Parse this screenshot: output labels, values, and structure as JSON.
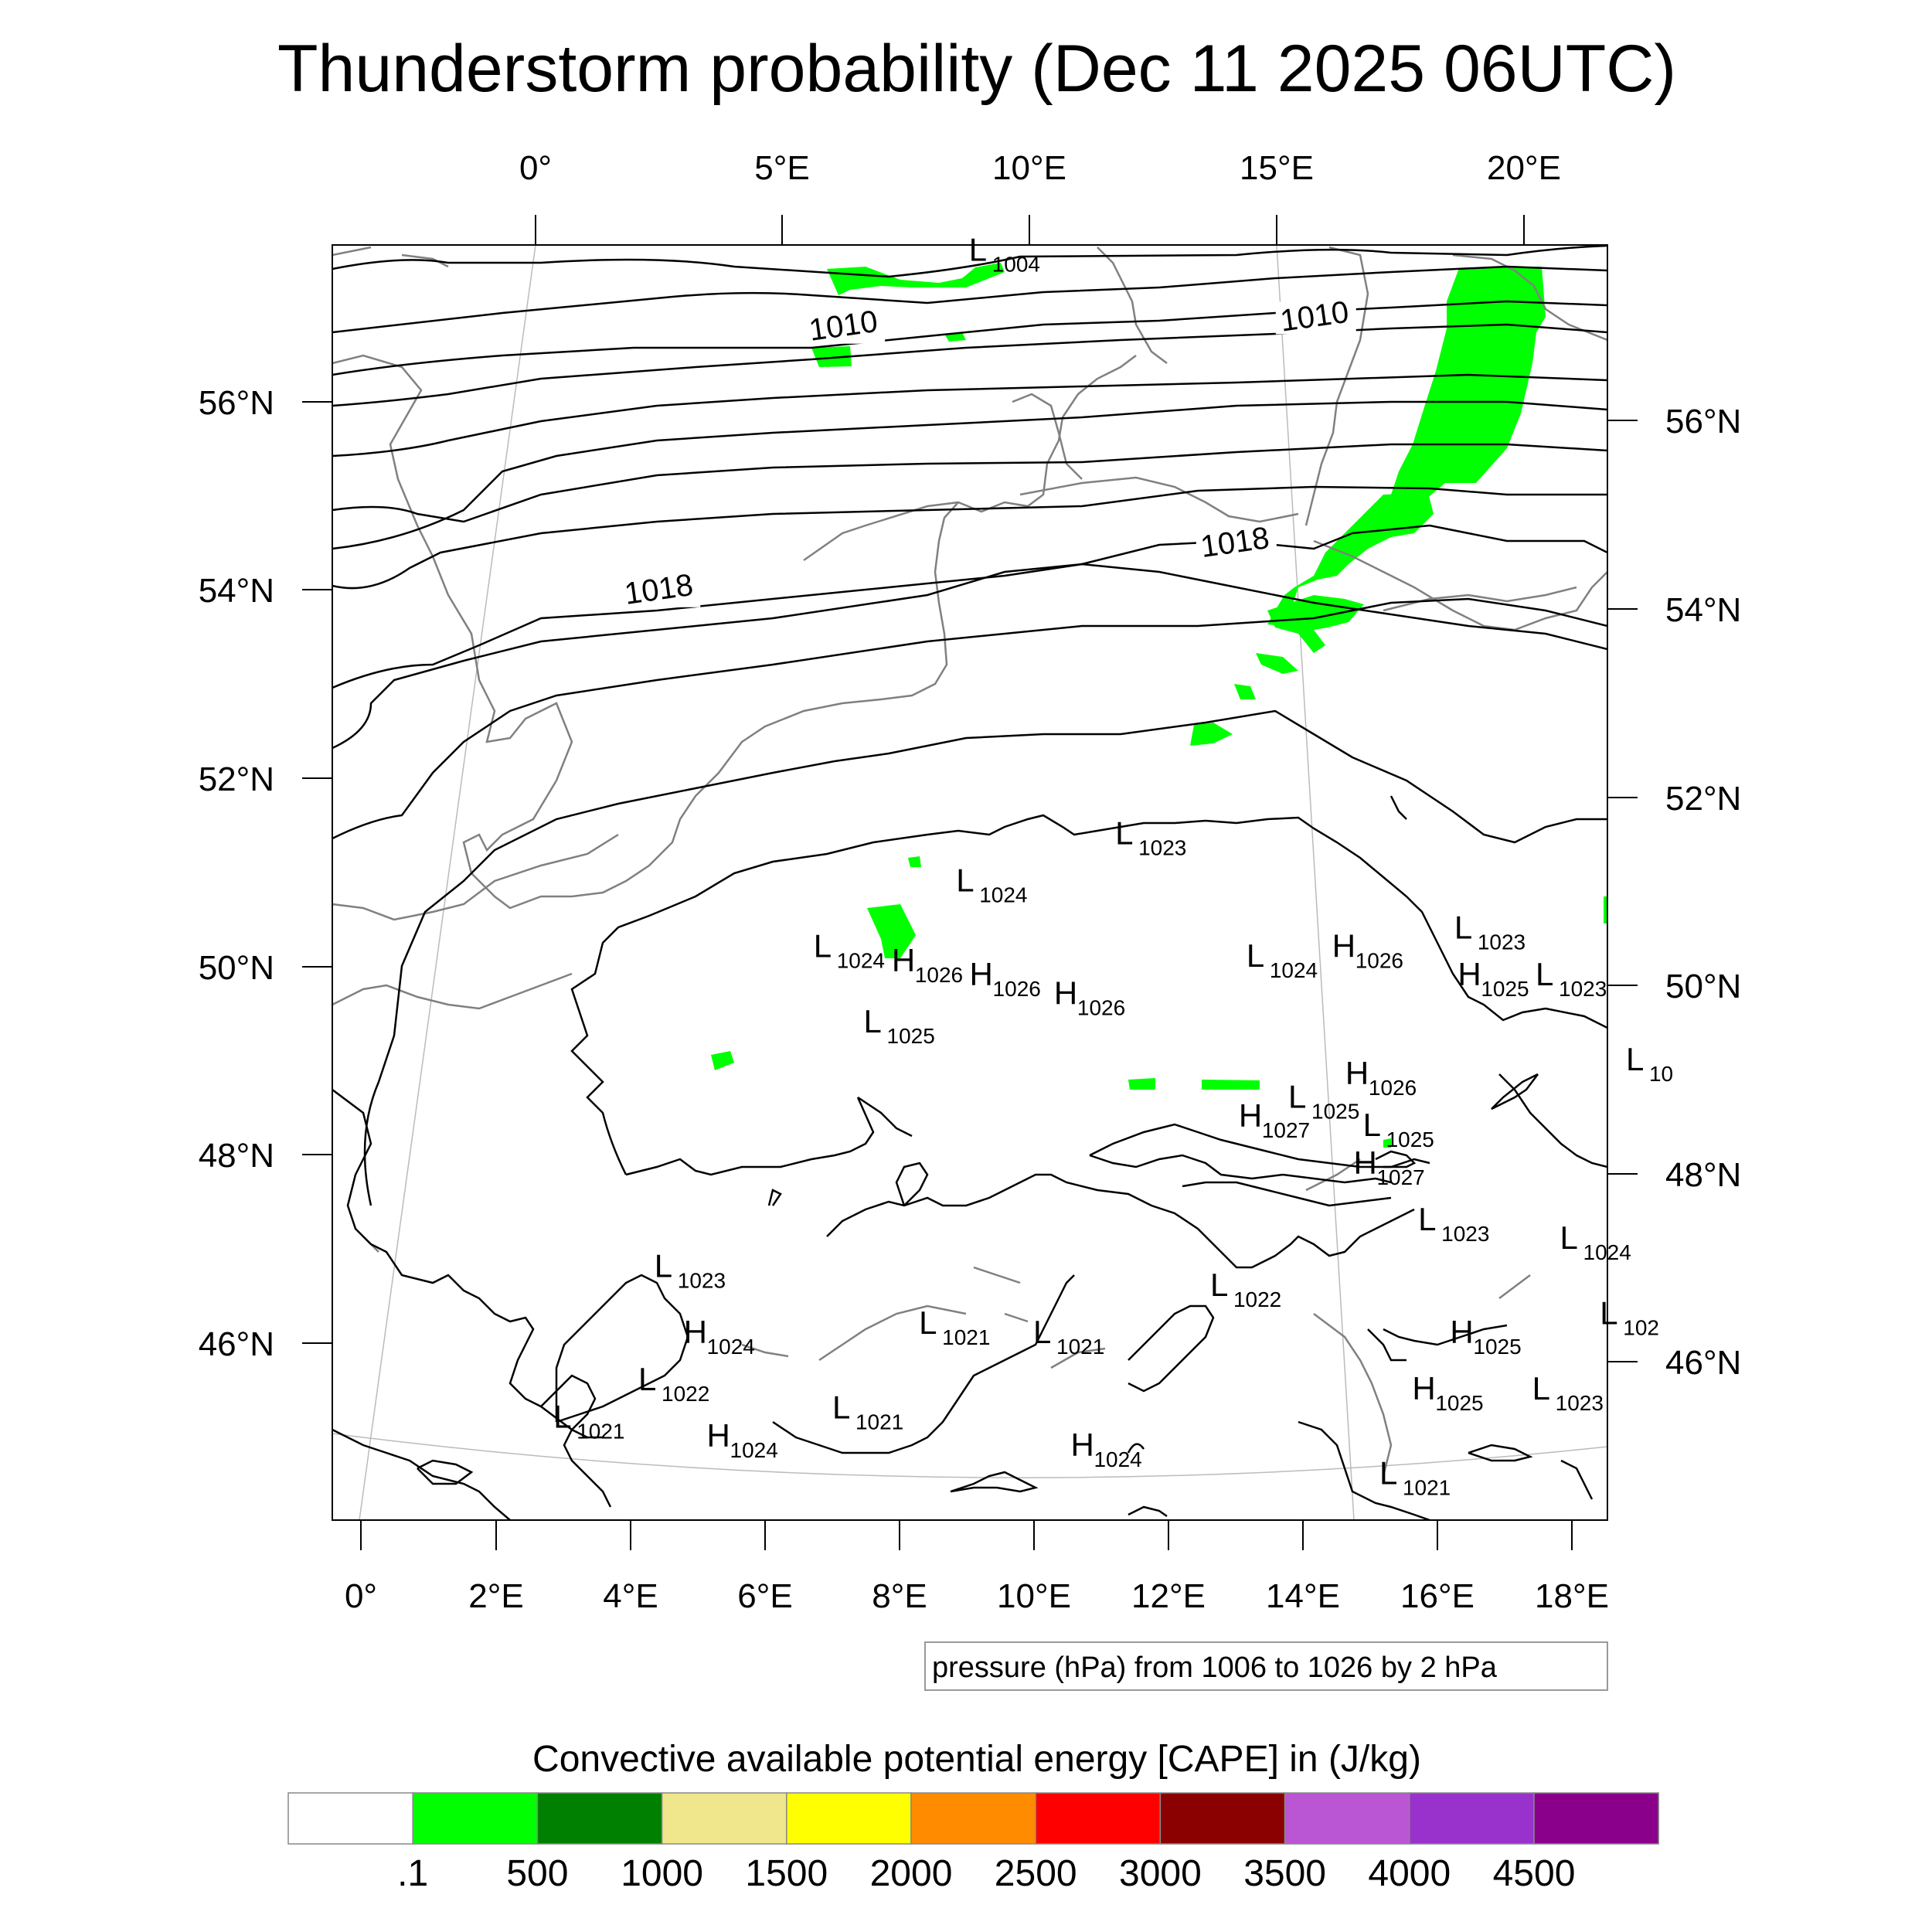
{
  "title": "Thunderstorm probability (Dec 11 2025 06UTC)",
  "top_lon_labels": [
    "0°",
    "5°E",
    "10°E",
    "15°E",
    "20°E"
  ],
  "bottom_lon_labels": [
    "0°",
    "2°E",
    "4°E",
    "6°E",
    "8°E",
    "10°E",
    "12°E",
    "14°E",
    "16°E",
    "18°E"
  ],
  "left_lat_labels": [
    "56°N",
    "54°N",
    "52°N",
    "50°N",
    "48°N",
    "46°N"
  ],
  "right_lat_labels": [
    "56°N",
    "54°N",
    "52°N",
    "50°N",
    "48°N",
    "46°N"
  ],
  "isobar_labels": [
    {
      "text": "1010",
      "lon": 7.3,
      "lat": 56.7
    },
    {
      "text": "1010",
      "lon": 13.4,
      "lat": 56.8
    },
    {
      "text": "1018",
      "lon": 4.8,
      "lat": 53.9
    },
    {
      "text": "1018",
      "lon": 12.5,
      "lat": 54.4
    }
  ],
  "pressure_centers": [
    {
      "t": "L",
      "v": "1004",
      "lon": 8.9,
      "lat": 57.5
    },
    {
      "t": "L",
      "v": "1023",
      "lon": 11.0,
      "lat": 51.3
    },
    {
      "t": "L",
      "v": "1024",
      "lon": 8.8,
      "lat": 50.8
    },
    {
      "t": "L",
      "v": "1024",
      "lon": 6.8,
      "lat": 50.1
    },
    {
      "t": "H",
      "v": "1026",
      "lon": 7.9,
      "lat": 49.95
    },
    {
      "t": "H",
      "v": "1026",
      "lon": 9.0,
      "lat": 49.8
    },
    {
      "t": "H",
      "v": "1026",
      "lon": 10.2,
      "lat": 49.6
    },
    {
      "t": "L",
      "v": "1025",
      "lon": 7.5,
      "lat": 49.3
    },
    {
      "t": "L",
      "v": "1024",
      "lon": 12.9,
      "lat": 50.0
    },
    {
      "t": "H",
      "v": "1026",
      "lon": 14.1,
      "lat": 50.1
    },
    {
      "t": "L",
      "v": "1023",
      "lon": 15.8,
      "lat": 50.3
    },
    {
      "t": "H",
      "v": "1025",
      "lon": 15.9,
      "lat": 49.8
    },
    {
      "t": "L",
      "v": "1023",
      "lon": 17.0,
      "lat": 49.8
    },
    {
      "t": "H",
      "v": "1026",
      "lon": 14.4,
      "lat": 48.75
    },
    {
      "t": "L",
      "v": "1025",
      "lon": 13.6,
      "lat": 48.5
    },
    {
      "t": "H",
      "v": "1027",
      "lon": 12.9,
      "lat": 48.3
    },
    {
      "t": "L",
      "v": "1025",
      "lon": 14.7,
      "lat": 48.2
    },
    {
      "t": "H",
      "v": "1027",
      "lon": 14.6,
      "lat": 47.8
    },
    {
      "t": "L",
      "v": "1023",
      "lon": 15.6,
      "lat": 47.2
    },
    {
      "t": "L",
      "v": "1024",
      "lon": 17.7,
      "lat": 47.0
    },
    {
      "t": "L",
      "v": "1023",
      "lon": 4.4,
      "lat": 46.7
    },
    {
      "t": "L",
      "v": "1022",
      "lon": 12.6,
      "lat": 46.5
    },
    {
      "t": "H",
      "v": "1024",
      "lon": 4.8,
      "lat": 46.0
    },
    {
      "t": "L",
      "v": "1021",
      "lon": 8.3,
      "lat": 46.1
    },
    {
      "t": "L",
      "v": "1021",
      "lon": 10.0,
      "lat": 46.0
    },
    {
      "t": "H",
      "v": "1025",
      "lon": 16.2,
      "lat": 46.0
    },
    {
      "t": "L",
      "v": "1022",
      "lon": 4.1,
      "lat": 45.5
    },
    {
      "t": "H",
      "v": "1025",
      "lon": 15.7,
      "lat": 45.4
    },
    {
      "t": "L",
      "v": "1023",
      "lon": 17.5,
      "lat": 45.4
    },
    {
      "t": "L",
      "v": "1021",
      "lon": 7.0,
      "lat": 45.2
    },
    {
      "t": "L",
      "v": "1021",
      "lon": 2.8,
      "lat": 45.1
    },
    {
      "t": "H",
      "v": "1024",
      "lon": 5.1,
      "lat": 44.9
    },
    {
      "t": "H",
      "v": "1024",
      "lon": 10.6,
      "lat": 44.8
    },
    {
      "t": "L",
      "v": "1021",
      "lon": 15.3,
      "lat": 44.5
    },
    {
      "t": "L",
      "v": "10",
      "lon": 18.4,
      "lat": 48.9
    },
    {
      "t": "L",
      "v": "102",
      "lon": 18.4,
      "lat": 46.2
    }
  ],
  "contour_note": "pressure (hPa) from 1006 to 1026 by 2 hPa",
  "legend": {
    "title": "Convective available potential energy [CAPE] in (J/kg)",
    "colors": [
      "#ffffff",
      "#00ff00",
      "#008000",
      "#f0e68c",
      "#ffff00",
      "#ff8c00",
      "#ff0000",
      "#8b0000",
      "#ba55d3",
      "#9932cc",
      "#8b008b"
    ],
    "labels": [
      ".1",
      "500",
      "1000",
      "1500",
      "2000",
      "2500",
      "3000",
      "3500",
      "4000",
      "4500"
    ]
  },
  "chart_data": {
    "type": "map",
    "title": "Thunderstorm probability (Dec 11 2025 06UTC)",
    "region": {
      "lon_range": [
        -0.5,
        19.0
      ],
      "lat_range": [
        44.5,
        57.5
      ]
    },
    "variable": "CAPE (J/kg)",
    "cape_levels": [
      0.1,
      500,
      1000,
      1500,
      2000,
      2500,
      3000,
      3500,
      4000,
      4500
    ],
    "cape_areas_category": ".1-500",
    "pressure_contours": {
      "from": 1006,
      "to": 1026,
      "step": 2,
      "units": "hPa"
    }
  }
}
